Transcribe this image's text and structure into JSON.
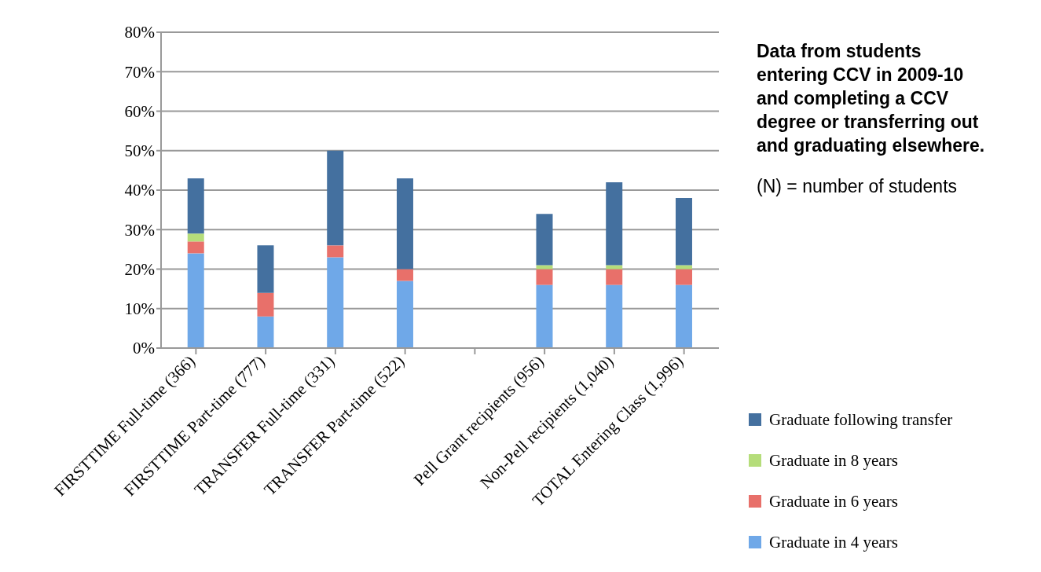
{
  "chart_data": {
    "type": "bar",
    "stacked": true,
    "categories": [
      "FIRSTTIME Full-time (366)",
      "FIRSTTIME Part-time (777)",
      "TRANSFER Full-time (331)",
      "TRANSFER Part-time (522)",
      null,
      "Pell Grant recipients (956)",
      "Non-Pell recipients (1,040)",
      "TOTAL Entering Class (1,996)"
    ],
    "series": [
      {
        "name": "Graduate in 4 years",
        "color": "#6fa8e8",
        "values": [
          24,
          8,
          23,
          17,
          null,
          16,
          16,
          16
        ]
      },
      {
        "name": "Graduate in 6 years",
        "color": "#e8706a",
        "values": [
          3,
          6,
          3,
          3,
          null,
          4,
          4,
          4
        ]
      },
      {
        "name": "Graduate in 8 years",
        "color": "#b5dd7a",
        "values": [
          2,
          0,
          0,
          0,
          null,
          1,
          1,
          1
        ]
      },
      {
        "name": "Graduate following transfer",
        "color": "#44709f",
        "values": [
          14,
          12,
          24,
          23,
          null,
          13,
          21,
          17
        ]
      }
    ],
    "ylim": [
      0,
      80
    ],
    "yticks": [
      {
        "value": 0,
        "label": "0%"
      },
      {
        "value": 10,
        "label": "10%"
      },
      {
        "value": 20,
        "label": "20%"
      },
      {
        "value": 30,
        "label": "30%"
      },
      {
        "value": 40,
        "label": "40%"
      },
      {
        "value": 50,
        "label": "50%"
      },
      {
        "value": 60,
        "label": "60%"
      },
      {
        "value": 70,
        "label": "70%"
      },
      {
        "value": 80,
        "label": "80%"
      }
    ],
    "grid": "y",
    "legend": "right",
    "annotations": [
      "Data from students entering CCV in 2009-10 and completing a CCV degree or transferring out and graduating elsewhere.",
      "(N) = number of students"
    ]
  }
}
